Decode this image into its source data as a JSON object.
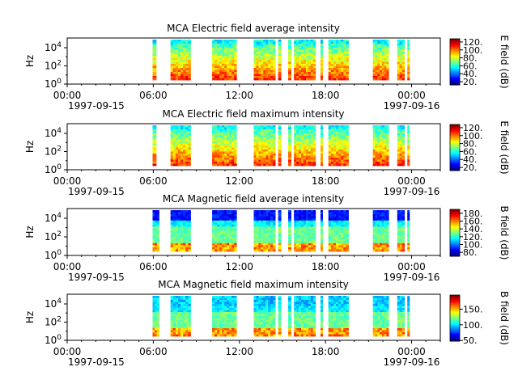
{
  "chart_data": [
    {
      "type": "heatmap",
      "title": "MCA  Electric field average intensity",
      "ylabel": "Hz",
      "yscale": "log",
      "y_ticks": [
        "10^0",
        "10^2",
        "10^4"
      ],
      "x_ticks": [
        "00:00",
        "06:00",
        "12:00",
        "18:00",
        "00:00"
      ],
      "x_dates": [
        "1997-09-15",
        "1997-09-16"
      ],
      "colorbar": {
        "label": "E field (dB)",
        "ticks": [
          "20.",
          "40.",
          "60.",
          "80.",
          "100.",
          "120."
        ],
        "range": [
          12,
          128
        ]
      },
      "data_segments_hours": [
        [
          5.95,
          6.2
        ],
        [
          7.2,
          8.6
        ],
        [
          10.1,
          11.8
        ],
        [
          13.0,
          14.5
        ],
        [
          14.7,
          14.9
        ],
        [
          15.4,
          15.6
        ],
        [
          15.8,
          17.3
        ],
        [
          17.65,
          17.8
        ],
        [
          18.2,
          19.6
        ],
        [
          21.3,
          22.4
        ],
        [
          23.0,
          23.5
        ],
        [
          23.7,
          23.85
        ]
      ]
    },
    {
      "type": "heatmap",
      "title": "MCA  Electric field maximum intensity",
      "ylabel": "Hz",
      "yscale": "log",
      "y_ticks": [
        "10^0",
        "10^2",
        "10^4"
      ],
      "x_ticks": [
        "00:00",
        "06:00",
        "12:00",
        "18:00",
        "00:00"
      ],
      "x_dates": [
        "1997-09-15",
        "1997-09-16"
      ],
      "colorbar": {
        "label": "E field (dB)",
        "ticks": [
          "20.",
          "40.",
          "60.",
          "80.",
          "100.",
          "120."
        ],
        "range": [
          12,
          128
        ]
      },
      "data_segments_hours": [
        [
          5.95,
          6.2
        ],
        [
          7.2,
          8.6
        ],
        [
          10.1,
          11.8
        ],
        [
          13.0,
          14.5
        ],
        [
          14.7,
          14.9
        ],
        [
          15.4,
          15.6
        ],
        [
          15.8,
          17.3
        ],
        [
          17.65,
          17.8
        ],
        [
          18.2,
          19.6
        ],
        [
          21.3,
          22.4
        ],
        [
          23.0,
          23.5
        ],
        [
          23.7,
          23.85
        ]
      ]
    },
    {
      "type": "heatmap",
      "title": "MCA  Magnetic field average intensity",
      "ylabel": "Hz",
      "yscale": "log",
      "y_ticks": [
        "10^0",
        "10^2",
        "10^4"
      ],
      "x_ticks": [
        "00:00",
        "06:00",
        "12:00",
        "18:00",
        "00:00"
      ],
      "x_dates": [
        "1997-09-15",
        "1997-09-16"
      ],
      "colorbar": {
        "label": "B field (dB)",
        "ticks": [
          "80.",
          "100.",
          "120.",
          "140.",
          "160.",
          "180."
        ],
        "range": [
          70,
          190
        ]
      },
      "data_segments_hours": [
        [
          5.95,
          6.4
        ],
        [
          7.2,
          8.6
        ],
        [
          10.1,
          11.8
        ],
        [
          13.0,
          14.5
        ],
        [
          14.7,
          14.9
        ],
        [
          15.4,
          15.6
        ],
        [
          15.8,
          17.3
        ],
        [
          17.65,
          17.8
        ],
        [
          18.2,
          19.6
        ],
        [
          21.3,
          22.4
        ],
        [
          23.0,
          23.5
        ],
        [
          23.7,
          23.85
        ]
      ]
    },
    {
      "type": "heatmap",
      "title": "MCA  Magnetic field maximum intensity",
      "ylabel": "Hz",
      "yscale": "log",
      "y_ticks": [
        "10^0",
        "10^2",
        "10^4"
      ],
      "x_ticks": [
        "00:00",
        "06:00",
        "12:00",
        "18:00",
        "00:00"
      ],
      "x_dates": [
        "1997-09-15",
        "1997-09-16"
      ],
      "colorbar": {
        "label": "B field (dB)",
        "ticks": [
          "50.",
          "100.",
          "150."
        ],
        "range": [
          48,
          195
        ]
      },
      "data_segments_hours": [
        [
          5.95,
          6.4
        ],
        [
          7.2,
          8.6
        ],
        [
          10.1,
          11.8
        ],
        [
          13.0,
          14.5
        ],
        [
          14.7,
          14.9
        ],
        [
          15.4,
          15.6
        ],
        [
          15.8,
          17.3
        ],
        [
          17.65,
          17.8
        ],
        [
          18.2,
          19.6
        ],
        [
          21.3,
          22.4
        ],
        [
          23.0,
          23.5
        ],
        [
          23.7,
          23.85
        ]
      ]
    }
  ]
}
